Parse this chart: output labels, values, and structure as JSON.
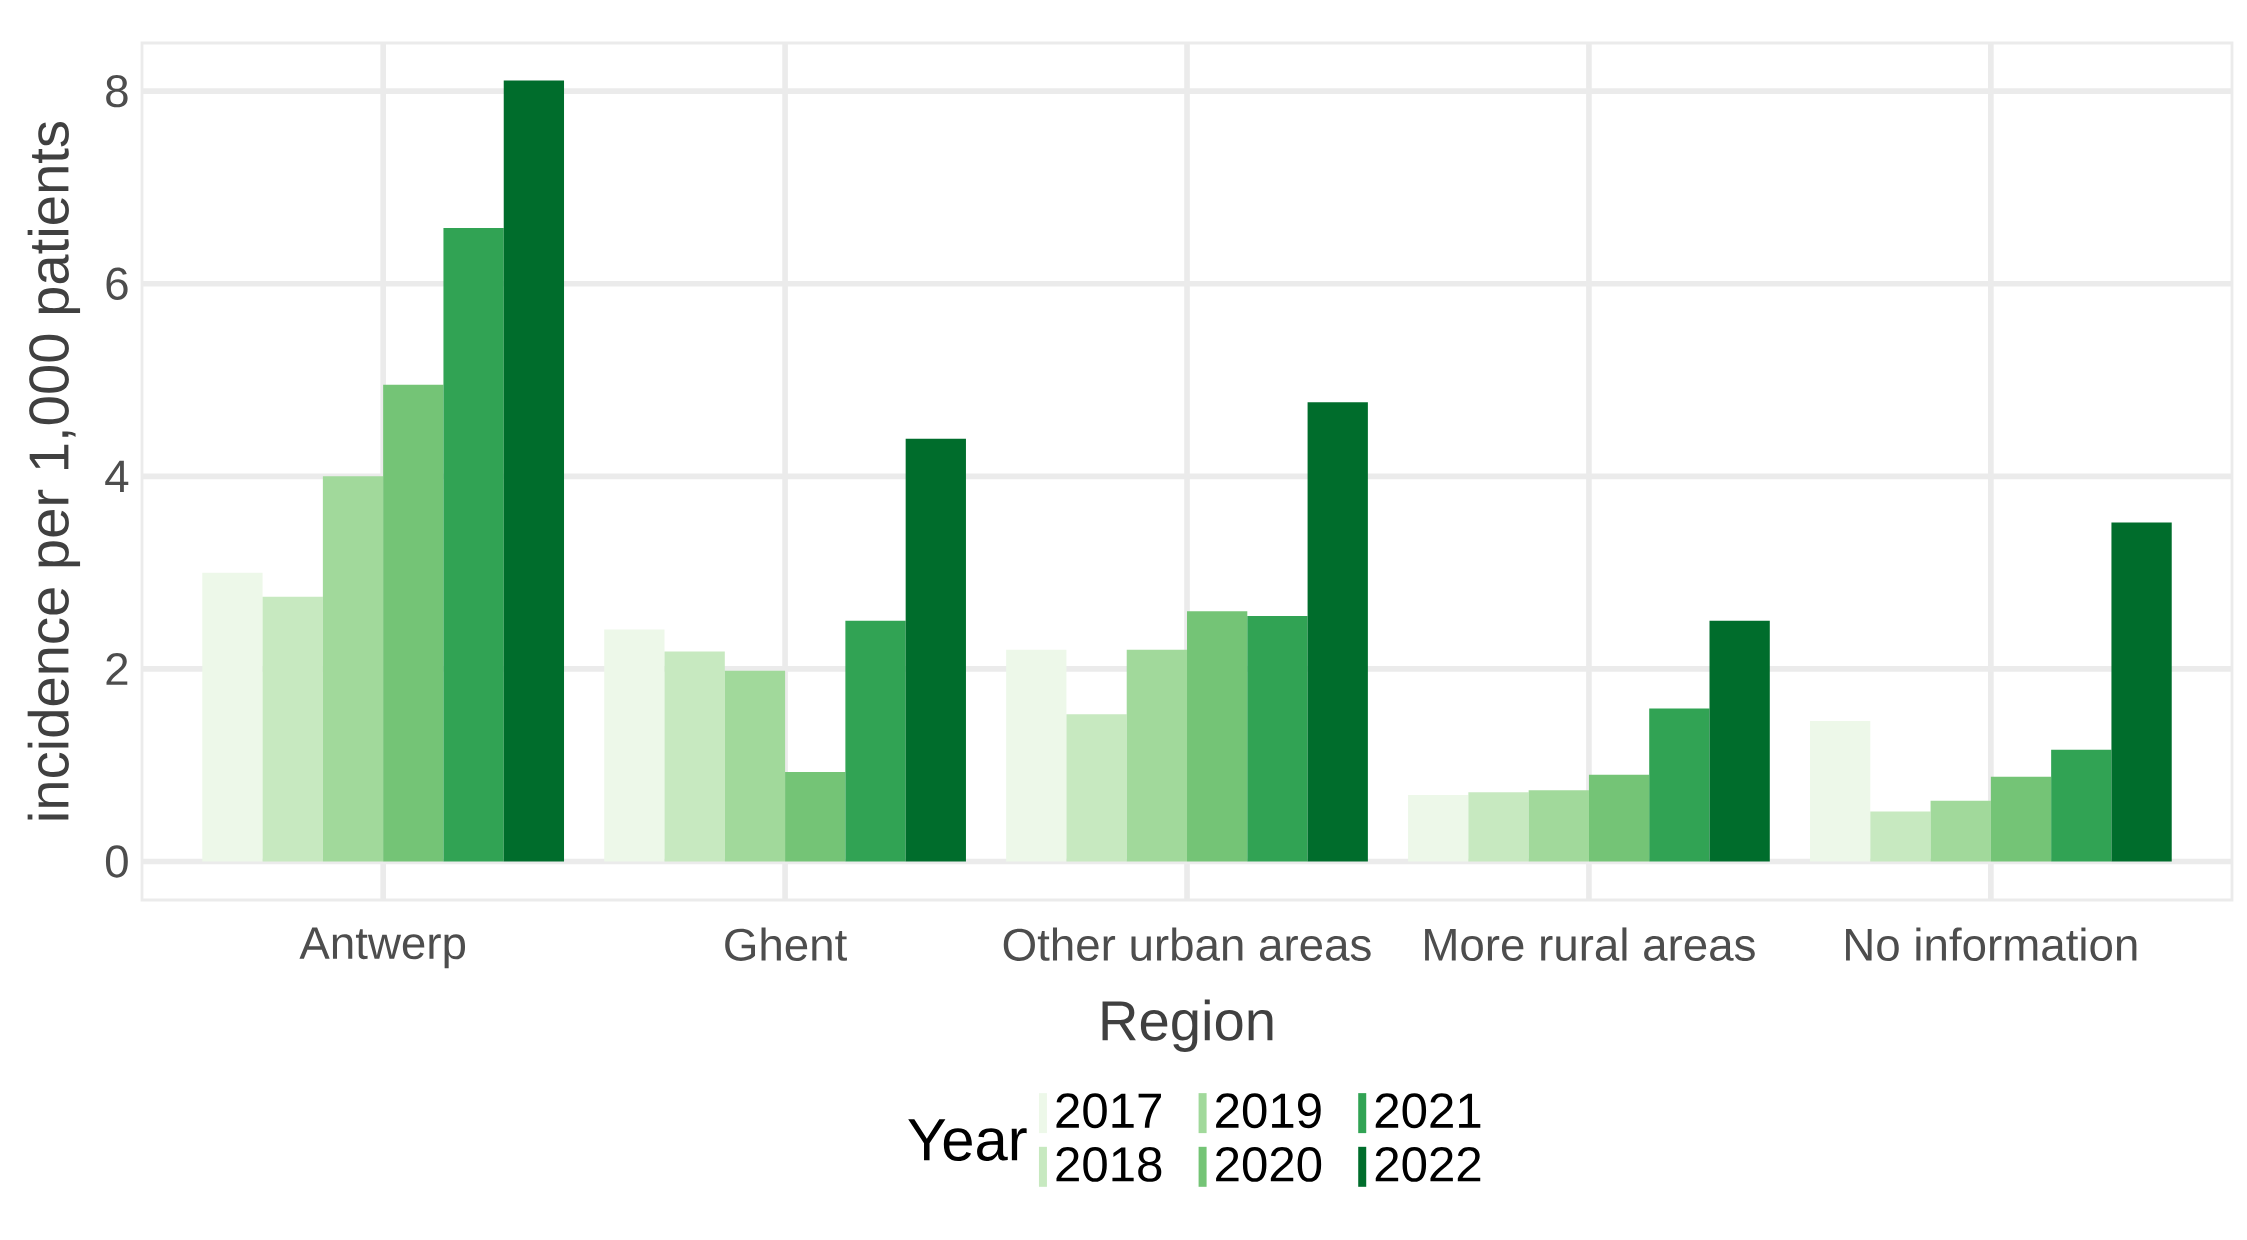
{
  "chart_data": {
    "type": "bar",
    "xlabel": "Region",
    "ylabel": "incidence per 1,000 patients",
    "legend_title": "Year",
    "categories": [
      "Antwerp",
      "Ghent",
      "Other urban areas",
      "More rural areas",
      "No information"
    ],
    "series": [
      {
        "name": "2017",
        "color": "#edf8e9",
        "values": [
          3.0,
          2.41,
          2.2,
          0.69,
          1.46
        ]
      },
      {
        "name": "2018",
        "color": "#c7e9c0",
        "values": [
          2.75,
          2.18,
          1.53,
          0.72,
          0.52
        ]
      },
      {
        "name": "2019",
        "color": "#a1d99b",
        "values": [
          4.0,
          1.98,
          2.2,
          0.74,
          0.63
        ]
      },
      {
        "name": "2020",
        "color": "#74c476",
        "values": [
          4.95,
          0.93,
          2.6,
          0.9,
          0.88
        ]
      },
      {
        "name": "2021",
        "color": "#31a354",
        "values": [
          6.58,
          2.5,
          2.55,
          1.59,
          1.16
        ]
      },
      {
        "name": "2022",
        "color": "#006d2c",
        "values": [
          8.11,
          4.39,
          4.77,
          2.5,
          3.52
        ]
      }
    ],
    "ylim": [
      -0.4,
      8.5
    ],
    "yticks": [
      0,
      2,
      4,
      6,
      8
    ],
    "grid": true,
    "legend": "bottom"
  }
}
